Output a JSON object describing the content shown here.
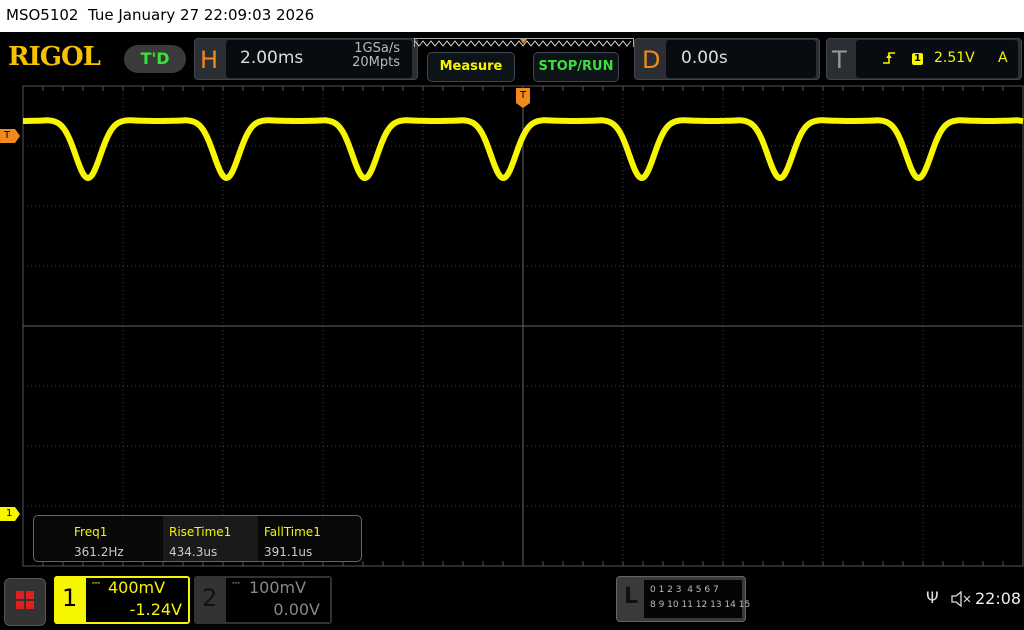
{
  "title_bar": {
    "model": "MSO5102",
    "datetime": "Tue January 27 22:09:03 2026"
  },
  "logo": "RIGOL",
  "run_state": "T'D",
  "horizontal": {
    "letter": "H",
    "timebase": "2.00ms",
    "sample_rate": "1GSa/s",
    "memory_depth": "20Mpts"
  },
  "buttons": {
    "measure": "Measure",
    "stop_run": "STOP/RUN"
  },
  "delay": {
    "letter": "D",
    "value": "0.00s"
  },
  "trigger": {
    "letter": "T",
    "edge_icon": "rising-edge-icon",
    "source": "1",
    "level": "2.51V",
    "mode": "A",
    "marker": "T"
  },
  "channel_markers": {
    "ch1": "1"
  },
  "measurements": [
    {
      "label": "Freq1",
      "value": "361.2Hz"
    },
    {
      "label": "RiseTime1",
      "value": "434.3us"
    },
    {
      "label": "FallTime1",
      "value": "391.1us"
    }
  ],
  "channels": [
    {
      "number": "1",
      "coupling": "DC",
      "scale": "400mV",
      "offset": "-1.24V",
      "active": true,
      "color": "#f6f600"
    },
    {
      "number": "2",
      "coupling": "DC",
      "scale": "100mV",
      "offset": "0.00V",
      "active": false,
      "color": "#888888"
    }
  ],
  "logic": {
    "letter": "L",
    "row1": "0 1 2 3  4 5 6 7",
    "row2": "8 9 10 11 12 13 14 15"
  },
  "status": {
    "usb_icon": "usb-icon",
    "sound_icon": "speaker-muted-icon",
    "time": "22:08"
  },
  "colors": {
    "ch1": "#f6f600",
    "accent": "#f08a1e",
    "run": "#3ce03c"
  }
}
